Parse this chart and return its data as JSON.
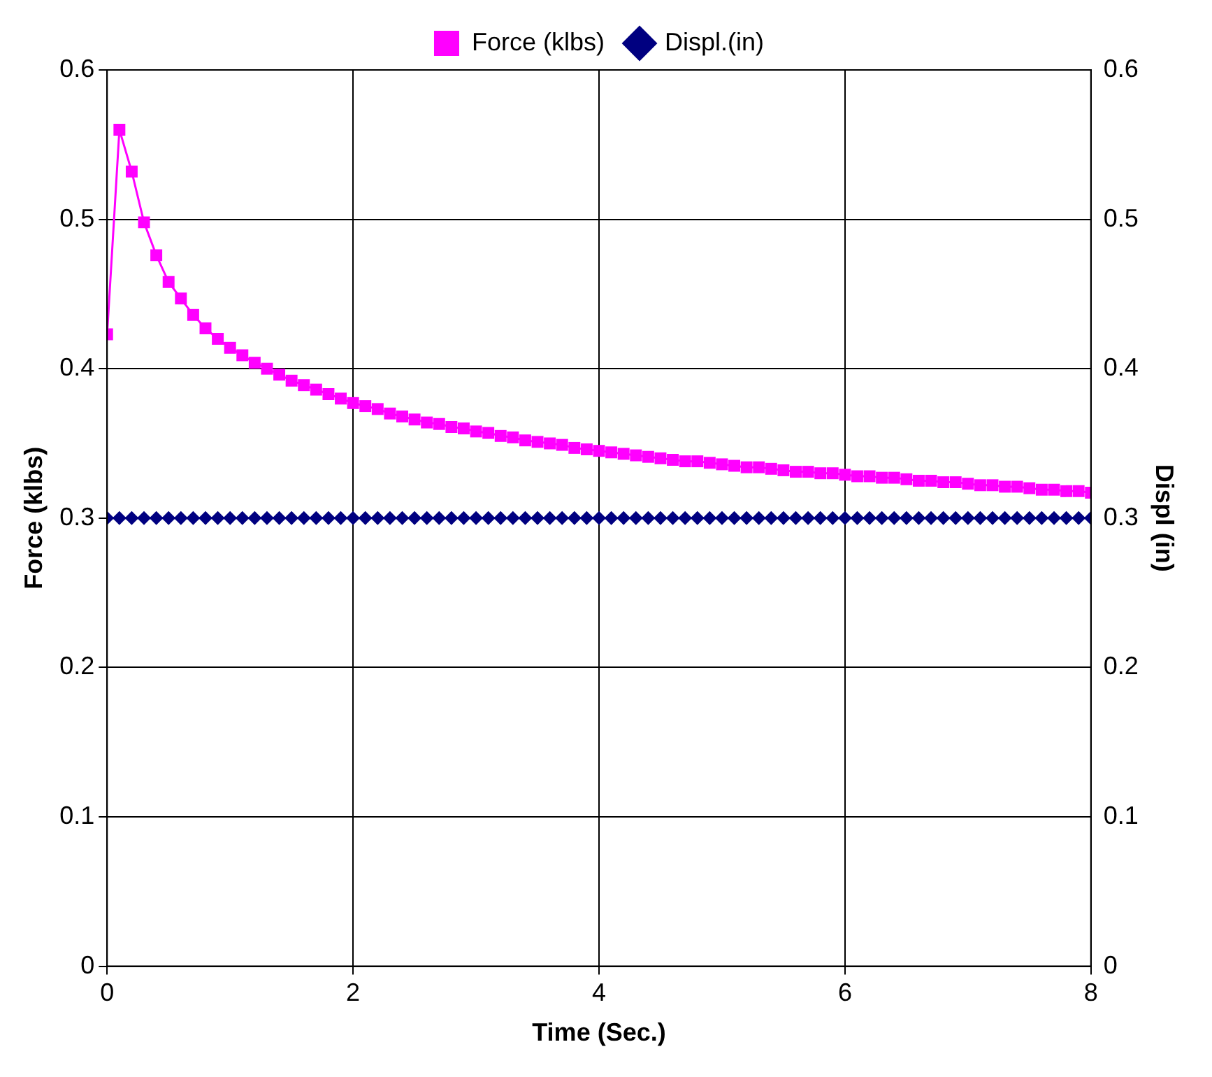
{
  "chart_data": {
    "type": "line",
    "xlabel": "Time (Sec.)",
    "ylabel": "Force (klbs)",
    "y2label": "Displ (in)",
    "x": [
      0,
      0.1,
      0.2,
      0.3,
      0.4,
      0.5,
      0.6,
      0.7,
      0.8,
      0.9,
      1,
      1.1,
      1.2,
      1.3,
      1.4,
      1.5,
      1.6,
      1.7,
      1.8,
      1.9,
      2,
      2.1,
      2.2,
      2.3,
      2.4,
      2.5,
      2.6,
      2.7,
      2.8,
      2.9,
      3,
      3.1,
      3.2,
      3.3,
      3.4,
      3.5,
      3.6,
      3.7,
      3.8,
      3.9,
      4,
      4.1,
      4.2,
      4.3,
      4.4,
      4.5,
      4.6,
      4.7,
      4.8,
      4.9,
      5,
      5.1,
      5.2,
      5.3,
      5.4,
      5.5,
      5.6,
      5.7,
      5.8,
      5.9,
      6,
      6.1,
      6.2,
      6.3,
      6.4,
      6.5,
      6.6,
      6.7,
      6.8,
      6.9,
      7,
      7.1,
      7.2,
      7.3,
      7.4,
      7.5,
      7.6,
      7.7,
      7.8,
      7.9,
      8
    ],
    "series": [
      {
        "name": "Force (klbs)",
        "color": "#ff00ff",
        "marker": "square",
        "values": [
          0.423,
          0.56,
          0.532,
          0.498,
          0.476,
          0.458,
          0.447,
          0.436,
          0.427,
          0.42,
          0.414,
          0.409,
          0.404,
          0.4,
          0.396,
          0.392,
          0.389,
          0.386,
          0.383,
          0.38,
          0.377,
          0.375,
          0.373,
          0.37,
          0.368,
          0.366,
          0.364,
          0.363,
          0.361,
          0.36,
          0.358,
          0.357,
          0.355,
          0.354,
          0.352,
          0.351,
          0.35,
          0.349,
          0.347,
          0.346,
          0.345,
          0.344,
          0.343,
          0.342,
          0.341,
          0.34,
          0.339,
          0.338,
          0.338,
          0.337,
          0.336,
          0.335,
          0.334,
          0.334,
          0.333,
          0.332,
          0.331,
          0.331,
          0.33,
          0.33,
          0.329,
          0.328,
          0.328,
          0.327,
          0.327,
          0.326,
          0.325,
          0.325,
          0.324,
          0.324,
          0.323,
          0.322,
          0.322,
          0.321,
          0.321,
          0.32,
          0.319,
          0.319,
          0.318,
          0.318,
          0.317
        ]
      },
      {
        "name": "Displ.(in)",
        "color": "#000080",
        "marker": "diamond",
        "axis": "y2",
        "values": [
          0.3,
          0.3,
          0.3,
          0.3,
          0.3,
          0.3,
          0.3,
          0.3,
          0.3,
          0.3,
          0.3,
          0.3,
          0.3,
          0.3,
          0.3,
          0.3,
          0.3,
          0.3,
          0.3,
          0.3,
          0.3,
          0.3,
          0.3,
          0.3,
          0.3,
          0.3,
          0.3,
          0.3,
          0.3,
          0.3,
          0.3,
          0.3,
          0.3,
          0.3,
          0.3,
          0.3,
          0.3,
          0.3,
          0.3,
          0.3,
          0.3,
          0.3,
          0.3,
          0.3,
          0.3,
          0.3,
          0.3,
          0.3,
          0.3,
          0.3,
          0.3,
          0.3,
          0.3,
          0.3,
          0.3,
          0.3,
          0.3,
          0.3,
          0.3,
          0.3,
          0.3,
          0.3,
          0.3,
          0.3,
          0.3,
          0.3,
          0.3,
          0.3,
          0.3,
          0.3,
          0.3,
          0.3,
          0.3,
          0.3,
          0.3,
          0.3,
          0.3,
          0.3,
          0.3,
          0.3,
          0.3
        ]
      }
    ],
    "xlim": [
      0,
      8
    ],
    "xticks": [
      0,
      2,
      4,
      6,
      8
    ],
    "ylim": [
      0,
      0.6
    ],
    "yticks": [
      0,
      0.1,
      0.2,
      0.3,
      0.4,
      0.5,
      0.6
    ],
    "y2lim": [
      0,
      0.6
    ],
    "y2ticks": [
      0,
      0.1,
      0.2,
      0.3,
      0.4,
      0.5,
      0.6
    ],
    "grid": true,
    "legend": "top",
    "line_style": "solid"
  }
}
